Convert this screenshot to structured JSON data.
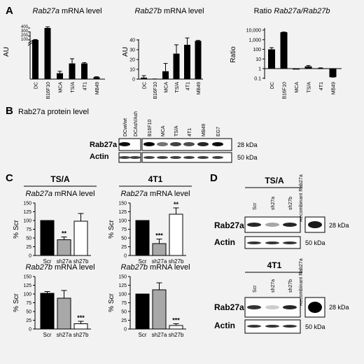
{
  "panels": {
    "A": {
      "letter": "A",
      "charts": [
        {
          "title_italic": "Rab27a",
          "title_rest": " mRNA level",
          "ylabel": "AU",
          "yticks": [
            "100",
            "200",
            "300",
            "400"
          ],
          "categories": [
            "DC",
            "B16F10",
            "MCA",
            "TS/A",
            "4T1",
            "MB49"
          ]
        },
        {
          "title_italic": "Rab27b",
          "title_rest": " mRNA level",
          "ylabel": "AU",
          "yticks": [
            "0",
            "10",
            "20",
            "30",
            "40"
          ],
          "categories": [
            "DC",
            "B16F10",
            "MCA",
            "TS/A",
            "4T1",
            "MB49"
          ]
        },
        {
          "title_plain": "Ratio ",
          "title_italic": "Rab27a/Rab27b",
          "ylabel": "Ratio",
          "yticks": [
            "0.1",
            "1",
            "10",
            "100",
            "1,000",
            "10,000"
          ],
          "categories": [
            "DC",
            "B16F10",
            "MCA",
            "TS/A",
            "4T1",
            "MB49"
          ]
        }
      ]
    },
    "B": {
      "letter": "B",
      "title": "Rab27a protein level",
      "lanes": [
        "DCwt/wt",
        "DCAsh/Ash",
        "B16F10",
        "MCA",
        "TS/A",
        "4T1",
        "MB49",
        "EG7"
      ],
      "rows": [
        "Rab27a",
        "Actin"
      ],
      "sizes": [
        "28 kDa",
        "50 kDa"
      ]
    },
    "C": {
      "letter": "C",
      "headers": [
        "TS/A",
        "4T1"
      ],
      "charts": [
        {
          "title_italic": "Rab27a",
          "title_rest": " mRNA level",
          "stars": [
            "**",
            ""
          ]
        },
        {
          "title_italic": "Rab27a",
          "title_rest": " mRNA level",
          "stars": [
            "***",
            "**"
          ]
        },
        {
          "title_italic": "Rab27b",
          "title_rest": " mRNA level",
          "stars": [
            "",
            "***"
          ]
        },
        {
          "title_italic": "Rab27b",
          "title_rest": " mRNA level",
          "stars": [
            "",
            "***"
          ]
        }
      ],
      "ylabel": "% Scr",
      "yticks": [
        "0",
        "25",
        "50",
        "75",
        "100",
        "125",
        "150"
      ],
      "categories": [
        "Scr",
        "sh27a",
        "sh27b"
      ]
    },
    "D": {
      "letter": "D",
      "headers": [
        "TS/A",
        "4T1"
      ],
      "lanes": [
        "Scr",
        "sh27a",
        "sh27b"
      ],
      "recombinant": "Recombinant Rab27a",
      "rows": [
        "Rab27a",
        "Actin"
      ],
      "sizes": [
        "28 kDa",
        "50 kDa"
      ]
    }
  },
  "chart_data": [
    {
      "type": "bar",
      "title": "Rab27a mRNA level",
      "ylabel": "AU",
      "categories": [
        "DC",
        "B16F10",
        "MCA",
        "TS/A",
        "4T1",
        "MB49"
      ],
      "values": [
        100,
        400,
        15,
        40,
        40,
        5
      ],
      "errors": [
        10,
        30,
        5,
        12,
        2,
        1
      ],
      "ylim": [
        0,
        400
      ],
      "axis_break": true,
      "colors": [
        "#000000"
      ]
    },
    {
      "type": "bar",
      "title": "Rab27b mRNA level",
      "ylabel": "AU",
      "categories": [
        "DC",
        "B16F10",
        "MCA",
        "TS/A",
        "4T1",
        "MB49"
      ],
      "values": [
        1.5,
        0.1,
        8,
        26,
        35,
        39
      ],
      "errors": [
        2,
        0.1,
        8,
        9,
        7,
        0.5
      ],
      "ylim": [
        0,
        40
      ],
      "colors": [
        "#000000"
      ]
    },
    {
      "type": "bar",
      "title": "Ratio Rab27a/Rab27b",
      "ylabel": "Ratio",
      "scale": "log",
      "categories": [
        "DC",
        "B16F10",
        "MCA",
        "TS/A",
        "4T1",
        "MB49"
      ],
      "values": [
        100,
        6000,
        0.8,
        1.7,
        1.1,
        0.13
      ],
      "errors_up": [
        150,
        6300,
        1.0,
        2.1,
        1.2,
        0.13
      ],
      "ylim": [
        0.1,
        10000
      ],
      "colors": [
        "#000000"
      ]
    },
    {
      "type": "bar",
      "title": "TS/A Rab27a mRNA level",
      "ylabel": "% Scr",
      "categories": [
        "Scr",
        "sh27a",
        "sh27b"
      ],
      "values": [
        100,
        45,
        98
      ],
      "errors": [
        0,
        8,
        22
      ],
      "ylim": [
        0,
        150
      ],
      "colors": [
        "#000000",
        "#a8a8a8",
        "#ffffff"
      ]
    },
    {
      "type": "bar",
      "title": "4T1 Rab27a mRNA level",
      "ylabel": "% Scr",
      "categories": [
        "Scr",
        "sh27a",
        "sh27b"
      ],
      "values": [
        100,
        34,
        118
      ],
      "errors": [
        0,
        13,
        18
      ],
      "ylim": [
        0,
        150
      ],
      "colors": [
        "#000000",
        "#a8a8a8",
        "#ffffff"
      ]
    },
    {
      "type": "bar",
      "title": "TS/A Rab27b mRNA level",
      "ylabel": "% Scr",
      "categories": [
        "Scr",
        "sh27a",
        "sh27b"
      ],
      "values": [
        102,
        88,
        15
      ],
      "errors": [
        5,
        22,
        7
      ],
      "ylim": [
        0,
        150
      ],
      "colors": [
        "#000000",
        "#a8a8a8",
        "#ffffff"
      ]
    },
    {
      "type": "bar",
      "title": "4T1 Rab27b mRNA level",
      "ylabel": "% Scr",
      "categories": [
        "Scr",
        "sh27a",
        "sh27b"
      ],
      "values": [
        100,
        112,
        10
      ],
      "errors": [
        0,
        20,
        5
      ],
      "ylim": [
        0,
        150
      ],
      "colors": [
        "#000000",
        "#a8a8a8",
        "#ffffff"
      ]
    }
  ],
  "blots": {
    "B": {
      "rab27a": [
        0.95,
        0,
        1.0,
        0.55,
        0.75,
        0.7,
        0.85,
        0.95
      ],
      "actin": [
        0.75,
        0.75,
        0.75,
        0.75,
        0.75,
        0.75,
        0.75,
        0.75
      ]
    },
    "D_TSA": {
      "rab27a": [
        0.85,
        0.35,
        0.85
      ],
      "actin": [
        0.8,
        0.8,
        0.8
      ],
      "recombinant": 0.9
    },
    "D_4T1": {
      "rab27a": [
        0.8,
        0.2,
        0.85
      ],
      "actin": [
        0.8,
        0.8,
        0.8
      ],
      "recombinant": 1.0
    }
  }
}
